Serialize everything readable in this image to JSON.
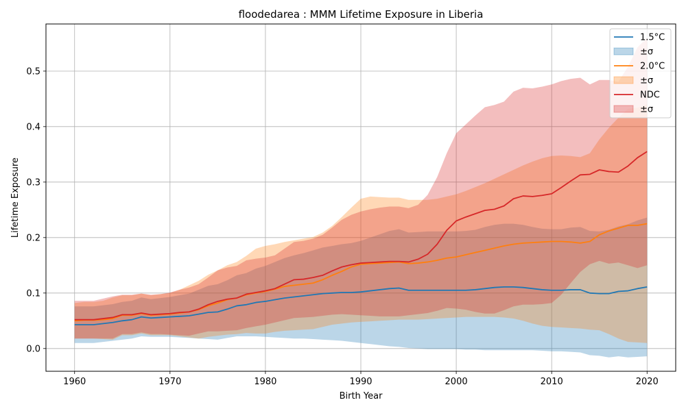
{
  "chart_data": {
    "type": "line",
    "title": "floodedarea : MMM Lifetime Exposure in Liberia",
    "xlabel": "Birth Year",
    "ylabel": "Lifetime Exposure",
    "xlim": [
      1957,
      2023
    ],
    "ylim": [
      -0.041,
      0.585
    ],
    "xticks": [
      1960,
      1970,
      1980,
      1990,
      2000,
      2010,
      2020
    ],
    "yticks": [
      0.0,
      0.1,
      0.2,
      0.3,
      0.4,
      0.5
    ],
    "grid": true,
    "legend_position": "top-right",
    "x": [
      1960,
      1961,
      1962,
      1963,
      1964,
      1965,
      1966,
      1967,
      1968,
      1969,
      1970,
      1971,
      1972,
      1973,
      1974,
      1975,
      1976,
      1977,
      1978,
      1979,
      1980,
      1981,
      1982,
      1983,
      1984,
      1985,
      1986,
      1987,
      1988,
      1989,
      1990,
      1991,
      1992,
      1993,
      1994,
      1995,
      1996,
      1997,
      1998,
      1999,
      2000,
      2001,
      2002,
      2003,
      2004,
      2005,
      2006,
      2007,
      2008,
      2009,
      2010,
      2011,
      2012,
      2013,
      2014,
      2015,
      2016,
      2017,
      2018,
      2019,
      2020
    ],
    "series": [
      {
        "name": "1.5°C",
        "band_name": "±σ",
        "color": "#1f77b4",
        "values": [
          0.043,
          0.043,
          0.043,
          0.045,
          0.047,
          0.05,
          0.052,
          0.057,
          0.055,
          0.056,
          0.057,
          0.058,
          0.059,
          0.062,
          0.065,
          0.066,
          0.071,
          0.077,
          0.079,
          0.083,
          0.085,
          0.088,
          0.091,
          0.093,
          0.095,
          0.097,
          0.099,
          0.1,
          0.101,
          0.101,
          0.102,
          0.104,
          0.106,
          0.108,
          0.109,
          0.105,
          0.105,
          0.105,
          0.105,
          0.105,
          0.105,
          0.105,
          0.106,
          0.108,
          0.11,
          0.111,
          0.111,
          0.11,
          0.108,
          0.106,
          0.105,
          0.105,
          0.106,
          0.106,
          0.1,
          0.099,
          0.099,
          0.103,
          0.104,
          0.108,
          0.111
        ],
        "lower": [
          0.01,
          0.01,
          0.01,
          0.012,
          0.014,
          0.016,
          0.018,
          0.022,
          0.021,
          0.021,
          0.021,
          0.02,
          0.019,
          0.018,
          0.017,
          0.016,
          0.019,
          0.022,
          0.022,
          0.022,
          0.021,
          0.02,
          0.019,
          0.018,
          0.018,
          0.017,
          0.016,
          0.015,
          0.014,
          0.012,
          0.01,
          0.008,
          0.006,
          0.004,
          0.003,
          0.001,
          0.0,
          -0.001,
          -0.001,
          -0.001,
          -0.001,
          -0.002,
          -0.002,
          -0.003,
          -0.003,
          -0.003,
          -0.003,
          -0.003,
          -0.003,
          -0.004,
          -0.005,
          -0.005,
          -0.006,
          -0.007,
          -0.012,
          -0.013,
          -0.016,
          -0.014,
          -0.016,
          -0.015,
          -0.014
        ],
        "upper": [
          0.076,
          0.076,
          0.076,
          0.078,
          0.08,
          0.084,
          0.086,
          0.092,
          0.089,
          0.091,
          0.093,
          0.096,
          0.099,
          0.106,
          0.113,
          0.116,
          0.123,
          0.132,
          0.136,
          0.144,
          0.149,
          0.156,
          0.163,
          0.168,
          0.172,
          0.177,
          0.182,
          0.185,
          0.188,
          0.19,
          0.194,
          0.2,
          0.206,
          0.212,
          0.215,
          0.209,
          0.21,
          0.211,
          0.211,
          0.211,
          0.211,
          0.212,
          0.214,
          0.219,
          0.223,
          0.225,
          0.225,
          0.223,
          0.219,
          0.216,
          0.215,
          0.215,
          0.218,
          0.219,
          0.212,
          0.211,
          0.214,
          0.22,
          0.224,
          0.231,
          0.236
        ]
      },
      {
        "name": "2.0°C",
        "band_name": "±σ",
        "color": "#ff7f0e",
        "values": [
          0.05,
          0.051,
          0.051,
          0.052,
          0.054,
          0.06,
          0.06,
          0.063,
          0.06,
          0.061,
          0.062,
          0.064,
          0.066,
          0.07,
          0.077,
          0.082,
          0.088,
          0.091,
          0.097,
          0.1,
          0.103,
          0.107,
          0.112,
          0.114,
          0.116,
          0.118,
          0.124,
          0.132,
          0.139,
          0.147,
          0.152,
          0.153,
          0.154,
          0.155,
          0.156,
          0.153,
          0.154,
          0.156,
          0.159,
          0.163,
          0.165,
          0.169,
          0.173,
          0.177,
          0.181,
          0.185,
          0.188,
          0.19,
          0.191,
          0.192,
          0.193,
          0.193,
          0.192,
          0.19,
          0.193,
          0.205,
          0.212,
          0.217,
          0.222,
          0.222,
          0.225
        ],
        "lower": [
          0.018,
          0.018,
          0.018,
          0.017,
          0.016,
          0.024,
          0.024,
          0.027,
          0.024,
          0.024,
          0.024,
          0.022,
          0.02,
          0.018,
          0.021,
          0.023,
          0.025,
          0.026,
          0.028,
          0.027,
          0.027,
          0.03,
          0.032,
          0.033,
          0.034,
          0.035,
          0.039,
          0.043,
          0.045,
          0.047,
          0.048,
          0.049,
          0.05,
          0.051,
          0.052,
          0.052,
          0.052,
          0.053,
          0.054,
          0.055,
          0.056,
          0.057,
          0.057,
          0.057,
          0.057,
          0.056,
          0.054,
          0.05,
          0.045,
          0.041,
          0.039,
          0.038,
          0.037,
          0.036,
          0.034,
          0.033,
          0.026,
          0.018,
          0.012,
          0.011,
          0.01
        ],
        "upper": [
          0.082,
          0.084,
          0.084,
          0.086,
          0.092,
          0.096,
          0.096,
          0.099,
          0.096,
          0.098,
          0.1,
          0.106,
          0.114,
          0.122,
          0.133,
          0.141,
          0.15,
          0.156,
          0.167,
          0.18,
          0.185,
          0.188,
          0.192,
          0.195,
          0.198,
          0.201,
          0.209,
          0.221,
          0.237,
          0.254,
          0.27,
          0.274,
          0.273,
          0.272,
          0.272,
          0.268,
          0.268,
          0.268,
          0.27,
          0.274,
          0.278,
          0.284,
          0.291,
          0.298,
          0.306,
          0.314,
          0.322,
          0.33,
          0.337,
          0.343,
          0.347,
          0.348,
          0.347,
          0.345,
          0.352,
          0.377,
          0.398,
          0.416,
          0.432,
          0.434,
          0.44
        ]
      },
      {
        "name": "NDC",
        "band_name": "±σ",
        "color": "#d62728",
        "values": [
          0.052,
          0.052,
          0.052,
          0.054,
          0.056,
          0.061,
          0.061,
          0.064,
          0.061,
          0.062,
          0.063,
          0.065,
          0.066,
          0.071,
          0.079,
          0.085,
          0.089,
          0.091,
          0.098,
          0.101,
          0.104,
          0.108,
          0.116,
          0.124,
          0.125,
          0.128,
          0.132,
          0.14,
          0.147,
          0.151,
          0.154,
          0.155,
          0.156,
          0.157,
          0.157,
          0.156,
          0.161,
          0.17,
          0.188,
          0.213,
          0.23,
          0.237,
          0.243,
          0.249,
          0.251,
          0.257,
          0.27,
          0.275,
          0.274,
          0.276,
          0.279,
          0.29,
          0.302,
          0.313,
          0.314,
          0.322,
          0.319,
          0.318,
          0.329,
          0.344,
          0.355
        ],
        "lower": [
          0.018,
          0.018,
          0.018,
          0.018,
          0.018,
          0.026,
          0.026,
          0.029,
          0.026,
          0.026,
          0.025,
          0.024,
          0.023,
          0.027,
          0.031,
          0.031,
          0.032,
          0.033,
          0.037,
          0.04,
          0.043,
          0.047,
          0.051,
          0.055,
          0.056,
          0.057,
          0.059,
          0.061,
          0.062,
          0.061,
          0.06,
          0.059,
          0.058,
          0.058,
          0.058,
          0.06,
          0.062,
          0.064,
          0.068,
          0.073,
          0.072,
          0.07,
          0.066,
          0.063,
          0.063,
          0.069,
          0.076,
          0.079,
          0.079,
          0.08,
          0.082,
          0.097,
          0.118,
          0.138,
          0.152,
          0.158,
          0.153,
          0.155,
          0.15,
          0.145,
          0.15
        ],
        "upper": [
          0.086,
          0.086,
          0.086,
          0.09,
          0.094,
          0.097,
          0.097,
          0.099,
          0.097,
          0.098,
          0.101,
          0.106,
          0.11,
          0.116,
          0.128,
          0.141,
          0.146,
          0.149,
          0.159,
          0.162,
          0.164,
          0.168,
          0.18,
          0.192,
          0.194,
          0.198,
          0.205,
          0.218,
          0.232,
          0.241,
          0.247,
          0.251,
          0.254,
          0.256,
          0.256,
          0.253,
          0.259,
          0.277,
          0.309,
          0.352,
          0.388,
          0.404,
          0.42,
          0.435,
          0.439,
          0.445,
          0.463,
          0.47,
          0.469,
          0.472,
          0.476,
          0.482,
          0.486,
          0.488,
          0.476,
          0.484,
          0.484,
          0.481,
          0.508,
          0.543,
          0.56
        ]
      }
    ]
  }
}
